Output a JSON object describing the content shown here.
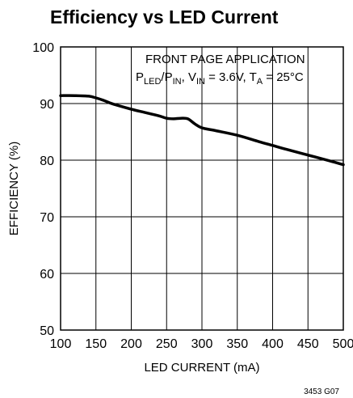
{
  "chart_data": {
    "type": "line",
    "title": "Efficiency vs LED Current",
    "xlabel": "LED CURRENT (mA)",
    "ylabel": "EFFICIENCY (%)",
    "xlim": [
      100,
      500
    ],
    "ylim": [
      50,
      100
    ],
    "xticks": [
      "100",
      "150",
      "200",
      "250",
      "300",
      "350",
      "400",
      "450",
      "500"
    ],
    "yticks": [
      "50",
      "60",
      "70",
      "80",
      "90",
      "100"
    ],
    "grid": true,
    "annotation": {
      "line1": "FRONT PAGE APPLICATION",
      "p": "P",
      "led_sub": "LED",
      "slash_p": "/P",
      "in_sub": "IN",
      "vin_prefix": ", V",
      "vin_sub": "IN",
      "vin_value": " = 3.6V, T",
      "ta_sub": "A",
      "ta_value": " = 25°C"
    },
    "series": [
      {
        "x": [
          100,
          120,
          140,
          150,
          160,
          170,
          180,
          200,
          220,
          240,
          250,
          260,
          270,
          280,
          290,
          300,
          320,
          350,
          380,
          400,
          420,
          450,
          480,
          500
        ],
        "y": [
          91.4,
          91.4,
          91.3,
          91.0,
          90.6,
          90.1,
          89.7,
          89.0,
          88.4,
          87.8,
          87.4,
          87.3,
          87.4,
          87.3,
          86.4,
          85.7,
          85.2,
          84.4,
          83.3,
          82.6,
          81.9,
          80.9,
          79.9,
          79.2
        ]
      }
    ],
    "figure_code": "3453 G07"
  }
}
